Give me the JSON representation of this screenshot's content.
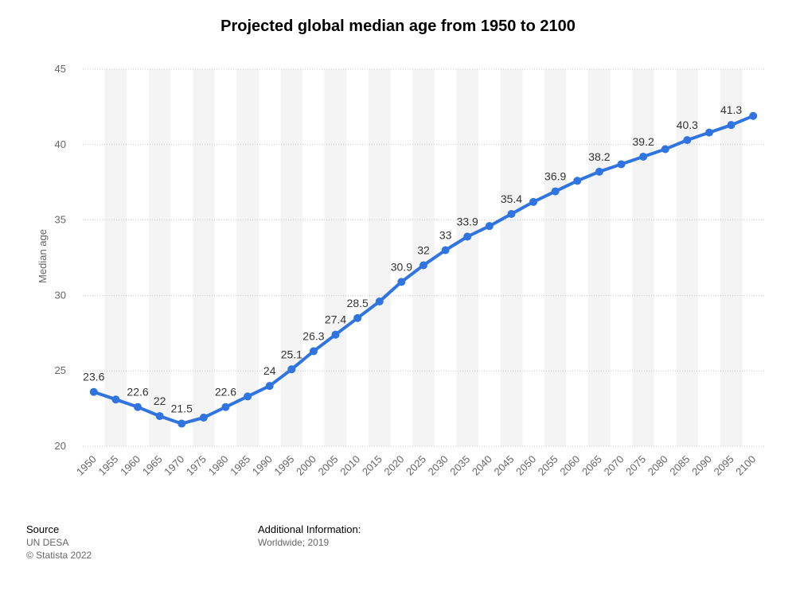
{
  "title": "Projected global median age from 1950 to 2100",
  "footer": {
    "source_heading": "Source",
    "source_name": "UN DESA",
    "copyright": "© Statista 2022",
    "info_heading": "Additional Information:",
    "info_text": "Worldwide; 2019"
  },
  "colors": {
    "line": "#2f74e0",
    "band": "#f4f4f4",
    "grid": "#c8c8c8"
  },
  "chart_data": {
    "type": "line",
    "title": "Projected global median age from 1950 to 2100",
    "ylabel": "Median age",
    "xlabel": "",
    "ylim": [
      20,
      45
    ],
    "yticks": [
      20,
      25,
      30,
      35,
      40,
      45
    ],
    "grid": true,
    "categories": [
      "1950",
      "1955",
      "1960",
      "1965",
      "1970",
      "1975",
      "1980",
      "1985",
      "1990",
      "1995",
      "2000",
      "2005",
      "2010",
      "2015",
      "2020",
      "2025",
      "2030",
      "2035",
      "2040",
      "2045",
      "2050",
      "2055",
      "2060",
      "2065",
      "2070",
      "2075",
      "2080",
      "2085",
      "2090",
      "2095",
      "2100"
    ],
    "values": [
      23.6,
      23.1,
      22.6,
      22.0,
      21.5,
      21.9,
      22.6,
      23.3,
      24.0,
      25.1,
      26.3,
      27.4,
      28.5,
      29.6,
      30.9,
      32.0,
      33.0,
      33.9,
      34.6,
      35.4,
      36.2,
      36.9,
      37.6,
      38.2,
      38.7,
      39.2,
      39.7,
      40.3,
      40.8,
      41.3,
      41.9
    ],
    "data_labels": [
      "23.6",
      "",
      "22.6",
      "22",
      "21.5",
      "",
      "22.6",
      "",
      "24",
      "25.1",
      "26.3",
      "27.4",
      "28.5",
      "",
      "30.9",
      "32",
      "33",
      "33.9",
      "",
      "35.4",
      "",
      "36.9",
      "",
      "38.2",
      "",
      "39.2",
      "",
      "40.3",
      "",
      "41.3",
      ""
    ]
  }
}
